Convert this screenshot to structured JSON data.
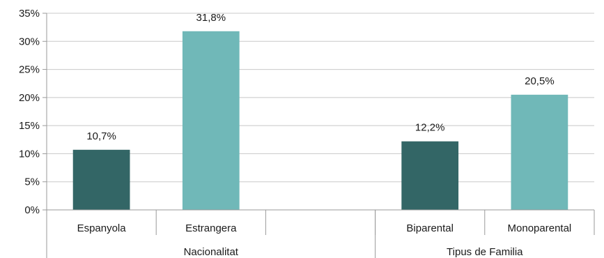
{
  "chart_data": {
    "type": "bar",
    "grid": true,
    "ylim": [
      0,
      35
    ],
    "ytick_values": [
      0,
      5,
      10,
      15,
      20,
      25,
      30,
      35
    ],
    "ytick_labels": [
      "0%",
      "5%",
      "10%",
      "15%",
      "20%",
      "25%",
      "30%",
      "35%"
    ],
    "categories": [
      "Espanyola",
      "Estrangera",
      "",
      "Biparental",
      "Monoparental"
    ],
    "groups": [
      {
        "label": "Nacionalitat",
        "categories": [
          "Espanyola",
          "Estrangera",
          ""
        ]
      },
      {
        "label": "Tipus de Familia",
        "categories": [
          "Biparental",
          "Monoparental"
        ]
      }
    ],
    "values": [
      10.7,
      31.8,
      null,
      12.2,
      20.5
    ],
    "data_labels": [
      "10,7%",
      "31,8%",
      "",
      "12,2%",
      "20,5%"
    ],
    "colors": [
      "#336666",
      "#70b8b8",
      "#ffffff",
      "#336666",
      "#70b8b8"
    ]
  }
}
